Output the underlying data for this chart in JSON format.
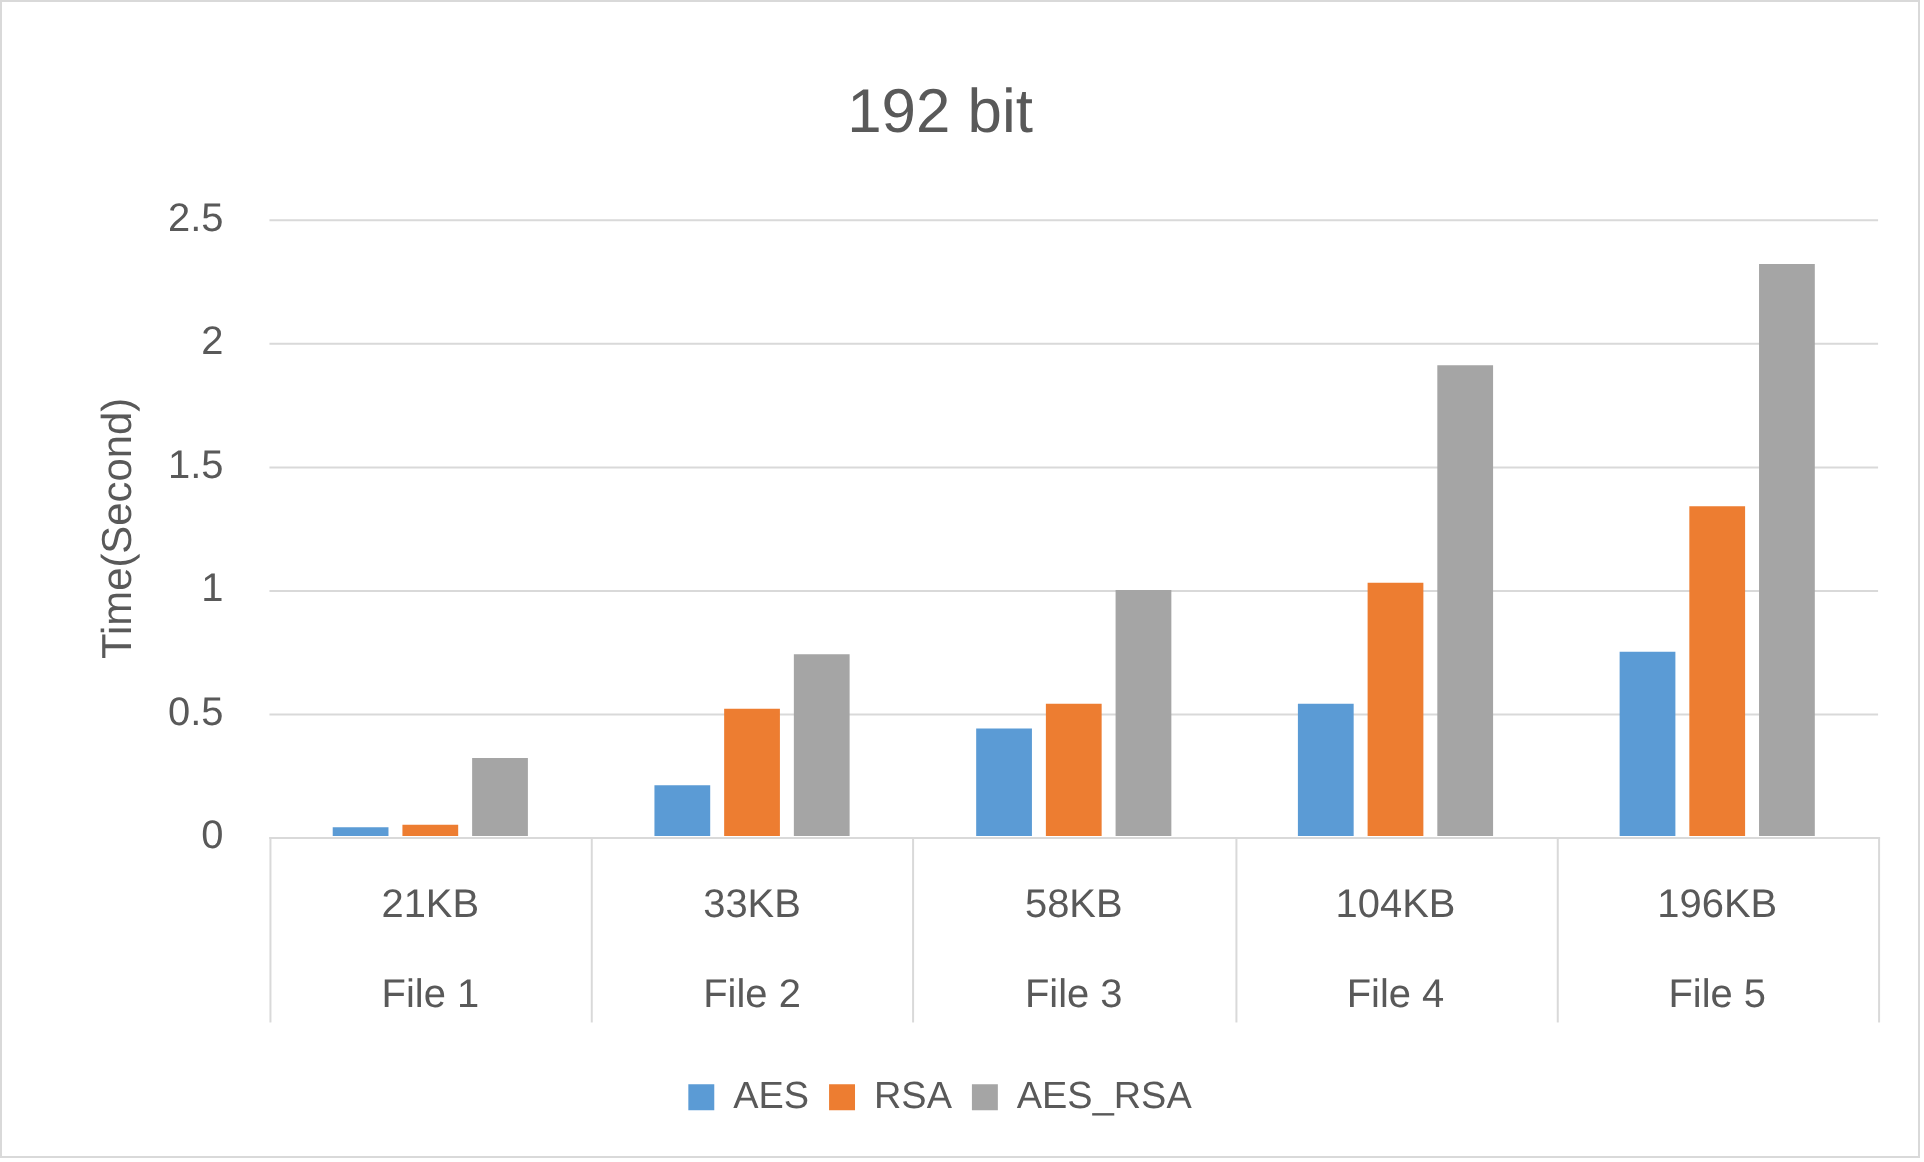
{
  "chart_data": {
    "type": "bar",
    "title": "192 bit",
    "ylabel": "Time(Second)",
    "categories": [
      "21KB\nFile 1",
      "33KB\nFile 2",
      "58KB\nFile 3",
      "104KB\nFile 4",
      "196KB\nFile 5"
    ],
    "series": [
      {
        "name": "AES",
        "color": "#5b9bd5",
        "values": [
          0.04,
          0.21,
          0.44,
          0.54,
          0.75
        ]
      },
      {
        "name": "RSA",
        "color": "#ed7d31",
        "values": [
          0.05,
          0.52,
          0.54,
          1.03,
          1.34
        ]
      },
      {
        "name": "AES_RSA",
        "color": "#a5a5a5",
        "values": [
          0.32,
          0.74,
          1.0,
          1.91,
          2.32
        ]
      }
    ],
    "ylim": [
      0,
      2.5
    ],
    "yticks": [
      0,
      0.5,
      1,
      1.5,
      2,
      2.5
    ],
    "grid": "y",
    "legend": "bottom"
  }
}
